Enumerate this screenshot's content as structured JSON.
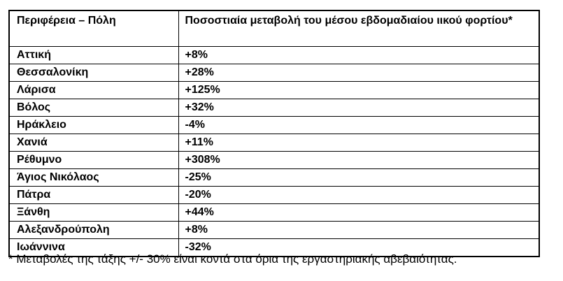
{
  "table": {
    "columns": [
      {
        "label": "Περιφέρεια – Πόλη"
      },
      {
        "label": "Ποσοστιαία μεταβολή του μέσου εβδομαδιαίου ιικού φορτίου*"
      }
    ],
    "rows": [
      {
        "region": "Αττική",
        "change": "+8%"
      },
      {
        "region": "Θεσσαλονίκη",
        "change": "+28%"
      },
      {
        "region": "Λάρισα",
        "change": "+125%"
      },
      {
        "region": "Βόλος",
        "change": "+32%"
      },
      {
        "region": "Ηράκλειο",
        "change": "-4%"
      },
      {
        "region": "Χανιά",
        "change": "+11%"
      },
      {
        "region": "Ρέθυμνο",
        "change": "+308%"
      },
      {
        "region": "Άγιος Νικόλαος",
        "change": "-25%"
      },
      {
        "region": "Πάτρα",
        "change": "-20%"
      },
      {
        "region": "Ξάνθη",
        "change": "+44%"
      },
      {
        "region": "Αλεξανδρούπολη",
        "change": "+8%"
      },
      {
        "region": "Ιωάννινα",
        "change": "-32%"
      }
    ]
  },
  "footnote": "* Μεταβολές της τάξης +/- 30% είναι κοντά στα όρια της εργαστηριακής αβεβαιότητας."
}
